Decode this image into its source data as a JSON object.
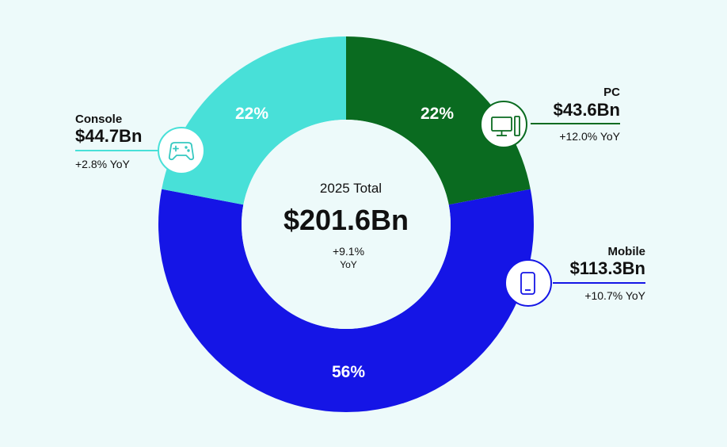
{
  "chart_data": {
    "type": "pie",
    "center": {
      "title": "2025 Total",
      "value": "$201.6Bn",
      "yoy": "+9.1%",
      "yoy_unit": "YoY"
    },
    "slices": [
      {
        "name": "PC",
        "percent": 22,
        "percent_label": "22%",
        "value_label": "$43.6Bn",
        "yoy": "+12.0% YoY",
        "color": "#0a6b20",
        "icon": "desktop-computer-icon"
      },
      {
        "name": "Mobile",
        "percent": 56,
        "percent_label": "56%",
        "value_label": "$113.3Bn",
        "yoy": "+10.7% YoY",
        "color": "#1515e6",
        "icon": "smartphone-icon"
      },
      {
        "name": "Console",
        "percent": 22,
        "percent_label": "22%",
        "value_label": "$44.7Bn",
        "yoy": "+2.8% YoY",
        "color": "#48e0d8",
        "icon": "gamepad-icon"
      }
    ]
  }
}
